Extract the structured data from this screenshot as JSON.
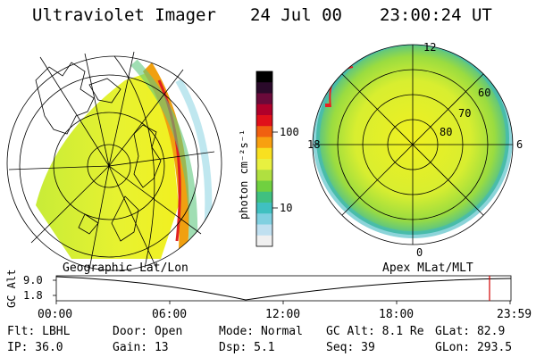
{
  "header": {
    "instrument": "Ultraviolet Imager",
    "date": "24 Jul 00",
    "time": "23:00:24 UT"
  },
  "left_panel": {
    "projection_label": "Geographic Lat/Lon"
  },
  "right_panel": {
    "projection_label": "Apex MLat/MLT",
    "mlt_labels": [
      "12",
      "18",
      "6",
      "0"
    ],
    "lat_labels": [
      "60",
      "70",
      "80"
    ]
  },
  "colorbar": {
    "unit_label": "photon cm⁻²s⁻¹",
    "ticks": [
      "100",
      "10"
    ],
    "colors": [
      "#000000",
      "#2a0a2a",
      "#6a0a3a",
      "#b0002a",
      "#e0101a",
      "#f06010",
      "#f8a010",
      "#f8e020",
      "#e8f040",
      "#b0e040",
      "#70d040",
      "#40c080",
      "#40c0c0",
      "#80d0e0",
      "#c0e0f0",
      "#f0f0f0"
    ]
  },
  "timeline": {
    "axis_label": "GC Alt",
    "y_ticks": [
      "9.0",
      "1.8"
    ],
    "x_ticks": [
      "00:00",
      "06:00",
      "12:00",
      "18:00",
      "23:59"
    ],
    "marker_color": "#d00000"
  },
  "info": {
    "filter": "Flt: LBHL",
    "door": "Door: Open",
    "mode": "Mode: Normal",
    "gc_alt": "GC Alt: 8.1 Re",
    "glat": "GLat:  82.9",
    "ip": "IP: 36.0",
    "gain": "Gain: 13",
    "dsp": "Dsp:    5.1",
    "seq": "Seq: 39",
    "glon": "GLon: 293.5"
  }
}
